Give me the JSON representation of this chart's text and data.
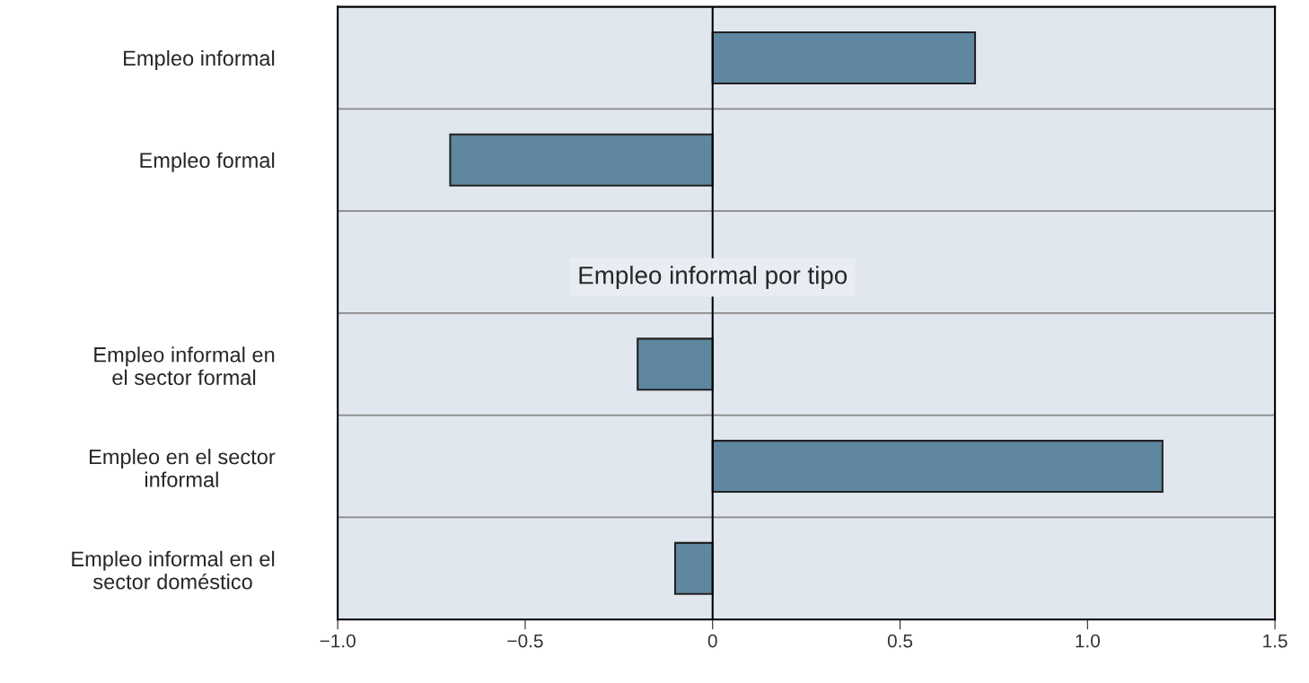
{
  "chart_data": {
    "type": "bar",
    "orientation": "horizontal",
    "categories": [
      "Empleo informal",
      "Empleo formal",
      null,
      "Empleo informal en\nel sector formal",
      "Empleo en el sector\ninformal",
      "Empleo informal en el\nsector doméstico"
    ],
    "values": [
      0.7,
      -0.7,
      null,
      -0.2,
      1.2,
      -0.1
    ],
    "color": "#5f87a0",
    "xlim": [
      -1.0,
      1.5
    ],
    "xticks": [
      {
        "value": -1.0,
        "label": "−1.0"
      },
      {
        "value": -0.5,
        "label": "−0.5"
      },
      0,
      {
        "value": 0.5,
        "label": "0.5"
      },
      {
        "value": 1.0,
        "label": "1.0"
      },
      {
        "value": 1.5,
        "label": "1.5"
      }
    ],
    "ref_lines": [
      {
        "axis": "x",
        "value": 0,
        "color": "#000000"
      }
    ],
    "annotations": [
      "Empleo informal por tipo"
    ],
    "grid": "y"
  }
}
